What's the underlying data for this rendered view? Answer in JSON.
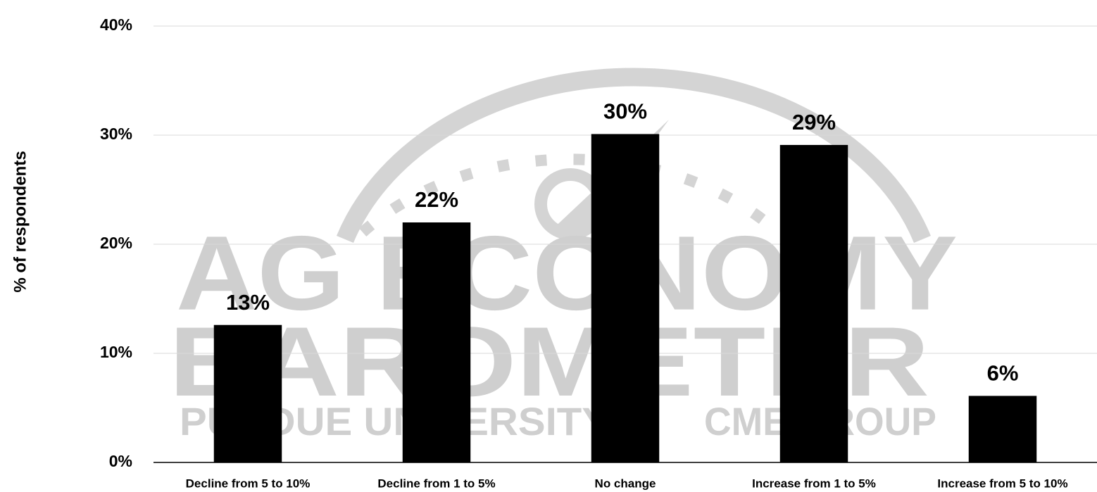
{
  "chart_data": {
    "type": "bar",
    "y_label": "% of respondents",
    "categories": [
      "Decline from 5 to 10%",
      "Decline from 1 to 5%",
      "No change",
      "Increase from 1 to 5%",
      "Increase from 5 to 10%"
    ],
    "values": [
      12.6,
      22.0,
      30.1,
      29.1,
      6.1
    ],
    "value_labels": [
      "13%",
      "22%",
      "30%",
      "29%",
      "6%"
    ],
    "color": "#000000",
    "ylim": [
      0,
      40
    ],
    "yticks": [
      {
        "value": 0,
        "label": "0%"
      },
      {
        "value": 10,
        "label": "10%"
      },
      {
        "value": 20,
        "label": "20%"
      },
      {
        "value": 30,
        "label": "30%"
      },
      {
        "value": 40,
        "label": "40%"
      }
    ],
    "grid": true,
    "watermark": [
      "AG ECONOMY",
      "BAROMETER",
      "PURDUE UNIVERSITY",
      "CME GROUP"
    ]
  }
}
